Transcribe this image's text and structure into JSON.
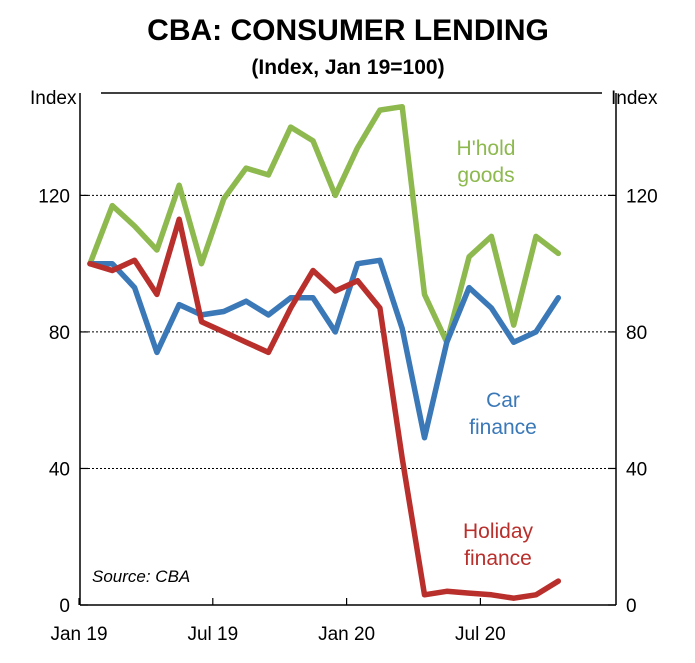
{
  "chart_data": {
    "type": "line",
    "title": "CBA: CONSUMER LENDING",
    "subtitle": "(Index, Jan 19=100)",
    "ylabel_left": "Index",
    "ylabel_right": "Index",
    "ylim": [
      0,
      150
    ],
    "yticks": [
      0,
      40,
      80,
      120
    ],
    "x_tick_labels": [
      {
        "label": "Jan 19",
        "index": 0
      },
      {
        "label": "Jul 19",
        "index": 6
      },
      {
        "label": "Jan 20",
        "index": 12
      },
      {
        "label": "Jul 20",
        "index": 18
      }
    ],
    "n_points": 22,
    "source": "Source: CBA",
    "series": [
      {
        "name": "H'hold goods",
        "label_lines": [
          "H'hold",
          "goods"
        ],
        "color": "#8db94f",
        "values": [
          100,
          117,
          111,
          104,
          123,
          100,
          119,
          128,
          126,
          140,
          136,
          120,
          134,
          145,
          146,
          91,
          77,
          102,
          108,
          82,
          108,
          103
        ]
      },
      {
        "name": "Car finance",
        "label_lines": [
          "Car",
          "finance"
        ],
        "color": "#3a78b8",
        "values": [
          100,
          100,
          93,
          74,
          88,
          85,
          86,
          89,
          85,
          90,
          90,
          80,
          100,
          101,
          81,
          49,
          77,
          93,
          87,
          77,
          80,
          90
        ]
      },
      {
        "name": "Holiday finance",
        "label_lines": [
          "Holiday",
          "finance"
        ],
        "color": "#b92f2c",
        "values": [
          100,
          98,
          101,
          91,
          113,
          83,
          80,
          77,
          74,
          87,
          98,
          92,
          95,
          87,
          43,
          3,
          4,
          3.5,
          3,
          2,
          3,
          7
        ]
      }
    ]
  }
}
